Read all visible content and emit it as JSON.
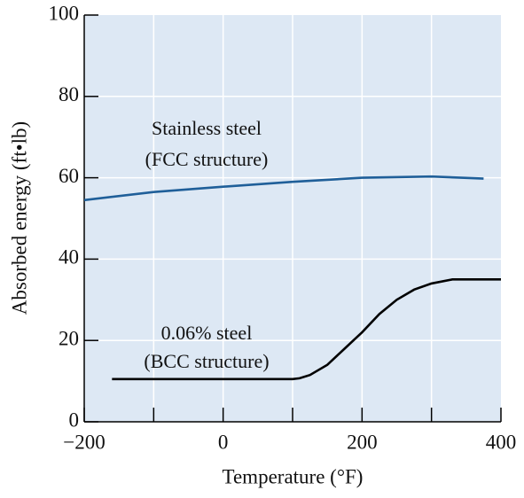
{
  "chart_data": {
    "type": "line",
    "x_label": "Temperature (°F)",
    "y_label": "Absorbed energy (ft•lb)",
    "annotations": [
      "Stainless steel",
      "(FCC structure)",
      "0.06% steel",
      "(BCC structure)"
    ],
    "series": [
      {
        "color": "#1f5f99",
        "x": [
          -200,
          -100,
          0,
          100,
          200,
          300,
          375
        ],
        "values": [
          54.5,
          56.5,
          57.8,
          59,
          60,
          60.3,
          59.8
        ]
      },
      {
        "color": "#000000",
        "x": [
          -160,
          100,
          110,
          125,
          150,
          175,
          200,
          225,
          250,
          275,
          300,
          330,
          400
        ],
        "values": [
          10.5,
          10.5,
          10.7,
          11.5,
          14,
          18,
          22,
          26.5,
          30,
          32.5,
          34,
          35,
          35
        ]
      }
    ],
    "xlim": [
      -200,
      400
    ],
    "xticks": [
      {
        "value": -200,
        "label": "−200"
      },
      0,
      200,
      400
    ],
    "xminorticks": [
      -100,
      100,
      300
    ],
    "ylim": [
      0,
      100
    ],
    "yticks": [
      0,
      20,
      40,
      60,
      80,
      100
    ],
    "grid": true,
    "background": "#dde8f4"
  }
}
